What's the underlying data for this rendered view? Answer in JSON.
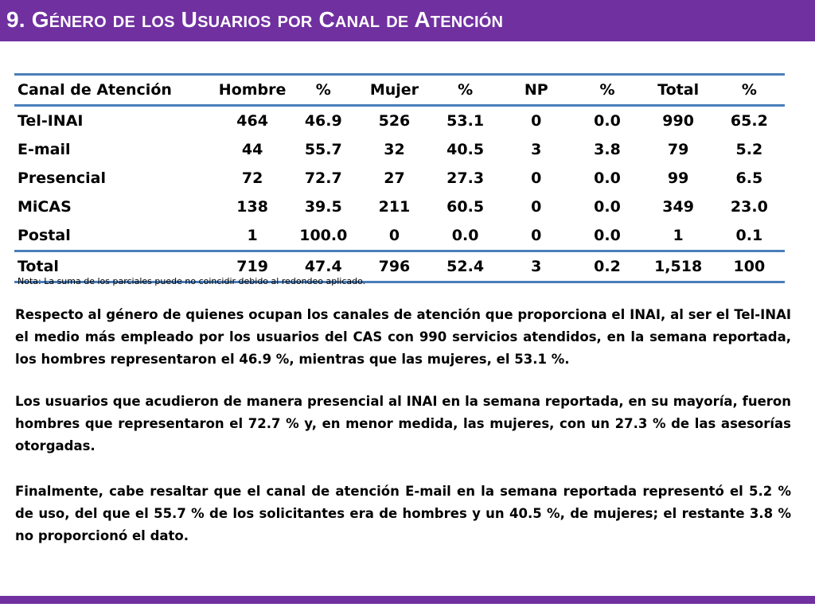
{
  "header": {
    "title": "9. Género de los Usuarios por Canal de Atención"
  },
  "table": {
    "columns": [
      "Canal de Atención",
      "Hombre",
      "%",
      "Mujer",
      "%",
      "NP",
      "%",
      "Total",
      "%"
    ],
    "rows": [
      [
        "Tel-INAI",
        "464",
        "46.9",
        "526",
        "53.1",
        "0",
        "0.0",
        "990",
        "65.2"
      ],
      [
        "E-mail",
        "44",
        "55.7",
        "32",
        "40.5",
        "3",
        "3.8",
        "79",
        "5.2"
      ],
      [
        "Presencial",
        "72",
        "72.7",
        "27",
        "27.3",
        "0",
        "0.0",
        "99",
        "6.5"
      ],
      [
        "MiCAS",
        "138",
        "39.5",
        "211",
        "60.5",
        "0",
        "0.0",
        "349",
        "23.0"
      ],
      [
        "Postal",
        "1",
        "100.0",
        "0",
        "0.0",
        "0",
        "0.0",
        "1",
        "0.1"
      ]
    ],
    "total_row": [
      "Total",
      "719",
      "47.4",
      "796",
      "52.4",
      "3",
      "0.2",
      "1,518",
      "100"
    ]
  },
  "note": "Nota: La suma de los parciales puede no coincidir debido al redondeo aplicado.",
  "paragraphs": [
    "Respecto al género de quienes ocupan los canales de atención que proporciona el INAI, al ser el Tel-INAI el medio más empleado por los usuarios del CAS con 990 servicios atendidos, en la semana reportada, los hombres representaron el 46.9 %, mientras que las mujeres, el 53.1 %.",
    "Los usuarios que acudieron de manera presencial al INAI en la semana reportada, en su mayoría, fueron hombres que representaron el 72.7 % y, en menor medida, las mujeres, con un 27.3 % de las asesorías otorgadas.",
    "Finalmente, cabe resaltar que el canal de atención E-mail en la semana reportada representó el 5.2 % de uso, del que el 55.7 % de los solicitantes era de hombres y un 40.5 %, de mujeres; el restante 3.8 % no proporcionó el dato."
  ],
  "colors": {
    "accent_purple": "#7030a0",
    "table_rule_blue": "#4a7ebb"
  }
}
